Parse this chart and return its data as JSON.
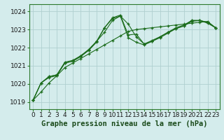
{
  "title": "Graphe pression niveau de la mer (hPa)",
  "bg_color": "#d4ecec",
  "grid_color": "#b0d0d0",
  "line_color": "#1a6b1a",
  "xlim": [
    -0.5,
    23.5
  ],
  "ylim": [
    1018.6,
    1024.4
  ],
  "yticks": [
    1019,
    1020,
    1021,
    1022,
    1023,
    1024
  ],
  "xticks": [
    0,
    1,
    2,
    3,
    4,
    5,
    6,
    7,
    8,
    9,
    10,
    11,
    12,
    13,
    14,
    15,
    16,
    17,
    18,
    19,
    20,
    21,
    22,
    23
  ],
  "series": [
    [
      1019.1,
      1019.55,
      1020.05,
      1020.45,
      1020.9,
      1021.15,
      1021.4,
      1021.65,
      1021.9,
      1022.15,
      1022.4,
      1022.65,
      1022.9,
      1023.0,
      1023.05,
      1023.1,
      1023.15,
      1023.2,
      1023.25,
      1023.3,
      1023.35,
      1023.4,
      1023.45,
      1023.1
    ],
    [
      1019.1,
      1020.05,
      1020.4,
      1020.5,
      1021.15,
      1021.25,
      1021.55,
      1021.85,
      1022.35,
      1022.85,
      1023.5,
      1023.75,
      1023.3,
      1022.6,
      1022.2,
      1022.35,
      1022.6,
      1022.85,
      1023.05,
      1023.2,
      1023.45,
      1023.5,
      1023.4,
      1023.1
    ],
    [
      1019.1,
      1020.05,
      1020.35,
      1020.45,
      1021.15,
      1021.25,
      1021.5,
      1021.85,
      1022.3,
      1023.1,
      1023.6,
      1023.75,
      1022.55,
      1022.3,
      1022.15,
      1022.35,
      1022.55,
      1022.8,
      1023.05,
      1023.2,
      1023.5,
      1023.5,
      1023.35,
      1023.1
    ],
    [
      1019.1,
      1020.05,
      1020.4,
      1020.5,
      1021.2,
      1021.3,
      1021.55,
      1021.9,
      1022.35,
      1023.1,
      1023.65,
      1023.8,
      1022.7,
      1022.75,
      1022.2,
      1022.4,
      1022.6,
      1022.85,
      1023.1,
      1023.25,
      1023.5,
      1023.5,
      1023.4,
      1023.1
    ]
  ],
  "line_styles": [
    {
      "lw": 0.8,
      "ls": "solid",
      "marker": "+",
      "ms": 3.5,
      "mew": 0.9
    },
    {
      "lw": 0.8,
      "ls": "solid",
      "marker": "+",
      "ms": 3.5,
      "mew": 0.9
    },
    {
      "lw": 0.8,
      "ls": "solid",
      "marker": "+",
      "ms": 3.5,
      "mew": 0.9
    },
    {
      "lw": 0.8,
      "ls": "solid",
      "marker": "+",
      "ms": 3.5,
      "mew": 0.9
    }
  ],
  "xlabel_fontsize": 7.5,
  "tick_fontsize": 6.5,
  "figsize": [
    3.2,
    2.0
  ],
  "dpi": 100
}
